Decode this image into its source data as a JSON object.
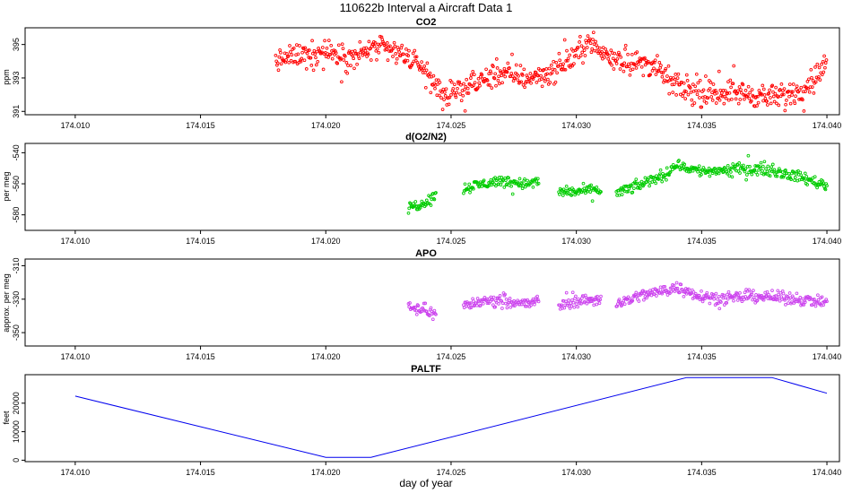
{
  "figure": {
    "title": "110622b   Interval a Aircraft Data 1",
    "xlabel": "day of year",
    "x_ticks": [
      "174.010",
      "174.015",
      "174.020",
      "174.025",
      "174.030",
      "174.035",
      "174.040"
    ]
  },
  "colors": {
    "co2": "#ff0000",
    "o2n2": "#00cc00",
    "apo": "#cc44ee",
    "paltf": "#0000ee",
    "axis": "#000000"
  },
  "chart_data": [
    {
      "type": "scatter",
      "title": "CO2",
      "ylabel": "ppm",
      "xlim": [
        174.008,
        174.0405
      ],
      "ylim": [
        390.8,
        396.0
      ],
      "y_ticks": [
        391,
        393,
        395
      ],
      "y_tick_labels": [
        "391",
        "393",
        "395"
      ],
      "trend": [
        [
          174.018,
          394.0
        ],
        [
          174.019,
          394.4
        ],
        [
          174.02,
          394.6
        ],
        [
          174.021,
          394.2
        ],
        [
          174.022,
          394.8
        ],
        [
          174.023,
          394.5
        ],
        [
          174.0238,
          393.7
        ],
        [
          174.0245,
          392.3
        ],
        [
          174.025,
          391.9
        ],
        [
          174.026,
          392.7
        ],
        [
          174.027,
          393.3
        ],
        [
          174.028,
          393.0
        ],
        [
          174.029,
          393.3
        ],
        [
          174.03,
          394.4
        ],
        [
          174.0305,
          395.2
        ],
        [
          174.031,
          394.5
        ],
        [
          174.032,
          394.0
        ],
        [
          174.033,
          393.8
        ],
        [
          174.034,
          392.5
        ],
        [
          174.035,
          392.0
        ],
        [
          174.036,
          392.2
        ],
        [
          174.037,
          392.0
        ],
        [
          174.038,
          391.8
        ],
        [
          174.039,
          392.3
        ],
        [
          174.04,
          393.8
        ]
      ],
      "noise": 0.6
    },
    {
      "type": "scatter",
      "title": "d(O2/N2)",
      "ylabel": "per meg",
      "xlim": [
        174.008,
        174.0405
      ],
      "ylim": [
        -590,
        -534
      ],
      "y_ticks": [
        -580,
        -560,
        -540
      ],
      "y_tick_labels": [
        "-580",
        "-560",
        "-540"
      ],
      "segments": [
        [
          [
            174.0233,
            -575
          ],
          [
            174.0238,
            -573
          ],
          [
            174.0244,
            -568
          ]
        ],
        [
          [
            174.0255,
            -563
          ],
          [
            174.026,
            -561
          ],
          [
            174.027,
            -558
          ],
          [
            174.028,
            -560
          ],
          [
            174.0285,
            -559
          ]
        ],
        [
          [
            174.0293,
            -565
          ],
          [
            174.03,
            -565
          ],
          [
            174.031,
            -564
          ]
        ],
        [
          [
            174.0316,
            -566
          ],
          [
            174.0325,
            -561
          ],
          [
            174.0335,
            -554
          ],
          [
            174.034,
            -548
          ],
          [
            174.035,
            -552
          ],
          [
            174.036,
            -551
          ],
          [
            174.037,
            -550
          ],
          [
            174.038,
            -552
          ],
          [
            174.039,
            -556
          ],
          [
            174.04,
            -561
          ]
        ]
      ],
      "noise": 3
    },
    {
      "type": "scatter",
      "title": "APO",
      "ylabel": "approx. per meg",
      "xlim": [
        174.008,
        174.0405
      ],
      "ylim": [
        -358,
        -306
      ],
      "y_ticks": [
        -350,
        -330,
        -310
      ],
      "y_tick_labels": [
        "-350",
        "-330",
        "-310"
      ],
      "segments": [
        [
          [
            174.0233,
            -334
          ],
          [
            174.0238,
            -336
          ],
          [
            174.0244,
            -339
          ]
        ],
        [
          [
            174.0255,
            -334
          ],
          [
            174.026,
            -332
          ],
          [
            174.027,
            -330
          ],
          [
            174.028,
            -333
          ],
          [
            174.0285,
            -331
          ]
        ],
        [
          [
            174.0293,
            -334
          ],
          [
            174.03,
            -331
          ],
          [
            174.031,
            -330
          ]
        ],
        [
          [
            174.0316,
            -333
          ],
          [
            174.0325,
            -328
          ],
          [
            174.0335,
            -325
          ],
          [
            174.034,
            -323
          ],
          [
            174.035,
            -328
          ],
          [
            174.036,
            -330
          ],
          [
            174.037,
            -328
          ],
          [
            174.038,
            -329
          ],
          [
            174.039,
            -330
          ],
          [
            174.04,
            -332
          ]
        ]
      ],
      "noise": 3
    },
    {
      "type": "line",
      "title": "PALTF",
      "ylabel": "feet",
      "xlim": [
        174.008,
        174.0405
      ],
      "ylim": [
        -500,
        30000
      ],
      "y_ticks": [
        0,
        10000,
        20000
      ],
      "y_tick_labels": [
        "0",
        "10000",
        "20000"
      ],
      "x": [
        174.01,
        174.02,
        174.0218,
        174.0344,
        174.0378,
        174.04
      ],
      "y": [
        22500,
        1000,
        1000,
        29000,
        29000,
        23500
      ]
    }
  ]
}
